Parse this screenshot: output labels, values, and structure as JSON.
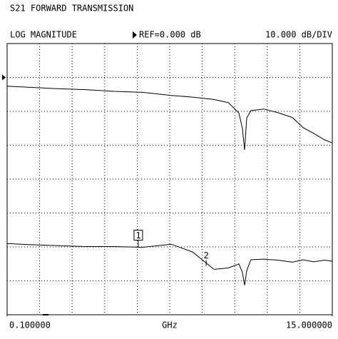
{
  "chart_data": {
    "type": "line",
    "title": "S21 FORWARD TRANSMISSION",
    "format": "LOG MAGNITUDE",
    "reference": {
      "label": "REF=0.000 dB",
      "value": 0
    },
    "scale_label": "10.000 dB/DIV",
    "x_label": "GHz",
    "xlim": [
      0.1,
      15
    ],
    "xticks": [
      {
        "value": 0.1,
        "label": "0.100000"
      },
      {
        "value": 15,
        "label": "15.000000"
      }
    ],
    "ylim": [
      -70,
      10
    ],
    "grid": {
      "x_divisions": 10,
      "y_divisions": 8
    },
    "x": [
      0.1,
      1.08,
      2.39,
      3.69,
      5.0,
      6.31,
      7.62,
      8.6,
      9.58,
      10.23,
      10.72,
      10.88,
      10.98,
      11.08,
      11.27,
      11.86,
      12.51,
      13.17,
      13.66,
      14.15,
      14.64,
      15.0
    ],
    "series": [
      {
        "color": "#000000",
        "values": [
          -2.6,
          -2.9,
          -3.3,
          -3.6,
          -4.1,
          -4.4,
          -5.3,
          -5.8,
          -6.5,
          -7.4,
          -10.5,
          -15,
          -21.4,
          -12,
          -9.8,
          -9.3,
          -10.4,
          -11.8,
          -14.8,
          -16.5,
          -18.4,
          -19.3
        ]
      },
      {
        "color": "#000000",
        "values": [
          -49,
          -49.3,
          -49.6,
          -49.9,
          -49.9,
          -50.1,
          -49.2,
          -51.5,
          -56.6,
          -56.2,
          -55,
          -57.5,
          -61.3,
          -57,
          -53.8,
          -53.6,
          -53.9,
          -54.5,
          -53.8,
          -54.4,
          -53.9,
          -54.2
        ]
      }
    ],
    "markers": [
      {
        "label": "1",
        "x": 6.11,
        "value": -50.1
      },
      {
        "label": "2",
        "x": 9.22,
        "value": -55.6
      }
    ]
  }
}
